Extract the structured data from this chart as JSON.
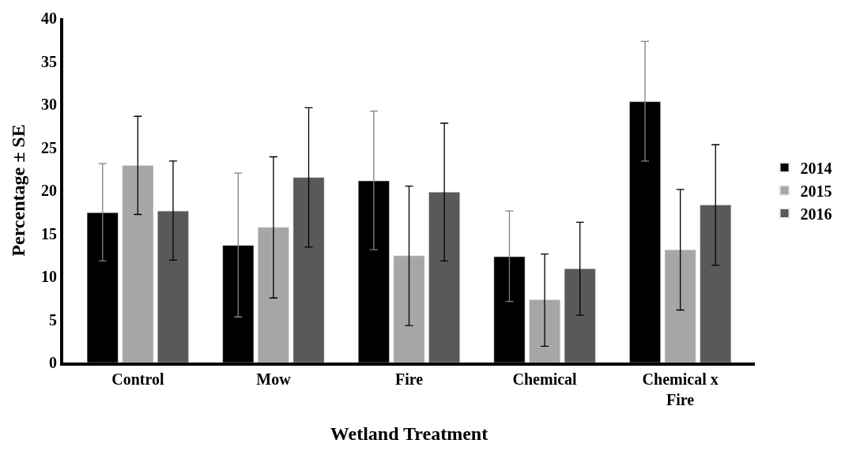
{
  "chart_data": {
    "type": "bar",
    "xlabel": "Wetland Treatment",
    "ylabel": "Percentage ± SE",
    "categories": [
      "Control",
      "Mow",
      "Fire",
      "Chemical",
      "Chemical x Fire"
    ],
    "series": [
      {
        "name": "2014",
        "color": "#000000",
        "values": [
          17.4,
          13.6,
          21.1,
          12.3,
          30.3
        ],
        "errors": [
          [
            11.8,
            23.1
          ],
          [
            5.3,
            22.0
          ],
          [
            13.1,
            29.2
          ],
          [
            7.1,
            17.6
          ],
          [
            23.4,
            37.3
          ]
        ]
      },
      {
        "name": "2015",
        "color": "#a6a6a6",
        "values": [
          22.9,
          15.7,
          12.4,
          7.3,
          13.1
        ],
        "errors": [
          [
            17.2,
            28.6
          ],
          [
            7.5,
            23.9
          ],
          [
            4.3,
            20.5
          ],
          [
            1.9,
            12.6
          ],
          [
            6.1,
            20.1
          ]
        ]
      },
      {
        "name": "2016",
        "color": "#595959",
        "values": [
          17.6,
          21.5,
          19.8,
          10.9,
          18.3
        ],
        "errors": [
          [
            11.9,
            23.4
          ],
          [
            13.4,
            29.6
          ],
          [
            11.8,
            27.8
          ],
          [
            5.5,
            16.3
          ],
          [
            11.3,
            25.3
          ]
        ]
      }
    ],
    "ylim": [
      0,
      40
    ],
    "yticks": [
      0,
      5,
      10,
      15,
      20,
      25,
      30,
      35,
      40
    ],
    "grid": false,
    "legend": "right"
  }
}
